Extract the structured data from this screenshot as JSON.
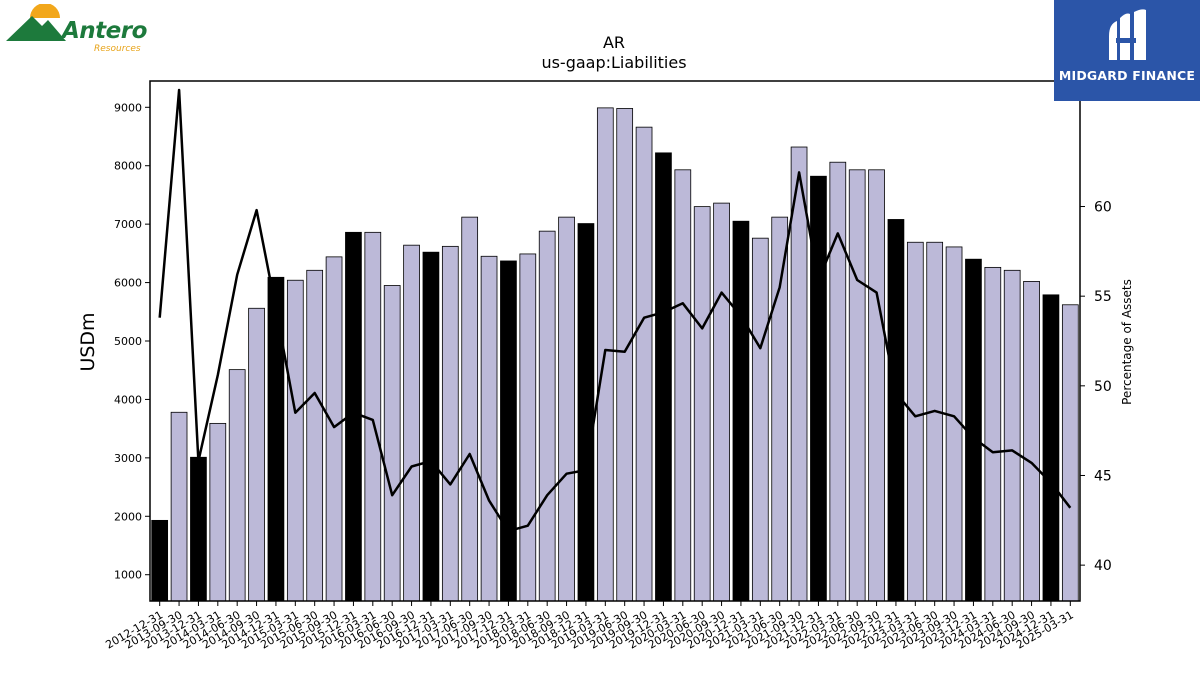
{
  "branding": {
    "left_logo_name": "Antero",
    "left_logo_sub": "Resources",
    "right_logo_name": "MIDGARD FINANCE"
  },
  "colors": {
    "bar_fill": "#bcb9d8",
    "bar_highlight": "#000000",
    "line": "#000000",
    "right_logo_bg": "#2b55a8"
  },
  "chart_data": {
    "type": "bar",
    "title": "AR",
    "subtitle": "us-gaap:Liabilities",
    "ylabel": "USDm",
    "y2label": "Percentage of Assets",
    "ylim": [
      550,
      9450
    ],
    "y2lim": [
      38,
      67
    ],
    "yticks": [
      1000,
      2000,
      3000,
      4000,
      5000,
      6000,
      7000,
      8000,
      9000
    ],
    "y2ticks": [
      40,
      45,
      50,
      55,
      60
    ],
    "grid": false,
    "categories": [
      "2012-12-31",
      "2013-09-30",
      "2013-12-31",
      "2014-03-31",
      "2014-06-30",
      "2014-09-30",
      "2014-12-31",
      "2015-03-31",
      "2015-06-30",
      "2015-09-30",
      "2015-12-31",
      "2016-03-31",
      "2016-06-30",
      "2016-09-30",
      "2016-12-31",
      "2017-03-31",
      "2017-06-30",
      "2017-09-30",
      "2017-12-31",
      "2018-03-31",
      "2018-06-30",
      "2018-09-30",
      "2018-12-31",
      "2019-03-31",
      "2019-06-30",
      "2019-09-30",
      "2019-12-31",
      "2020-03-31",
      "2020-06-30",
      "2020-09-30",
      "2020-12-31",
      "2021-03-31",
      "2021-06-30",
      "2021-09-30",
      "2021-12-31",
      "2022-03-31",
      "2022-06-30",
      "2022-09-30",
      "2022-12-31",
      "2023-03-31",
      "2023-06-30",
      "2023-09-30",
      "2023-12-31",
      "2024-03-31",
      "2024-06-30",
      "2024-09-30",
      "2024-12-31",
      "2025-03-31"
    ],
    "series": [
      {
        "kind": "bar",
        "values": [
          1930,
          3780,
          3010,
          3590,
          4510,
          5560,
          6090,
          6040,
          6210,
          6440,
          6860,
          6860,
          5950,
          6640,
          6520,
          6620,
          7120,
          6450,
          6370,
          6490,
          6880,
          7120,
          7010,
          8990,
          8980,
          8660,
          8220,
          7930,
          7300,
          7360,
          7050,
          6760,
          7120,
          8320,
          7820,
          8060,
          7930,
          7930,
          7080,
          6690,
          6690,
          6610,
          6400,
          6260,
          6210,
          6020,
          5790,
          5620
        ],
        "highlight": [
          true,
          false,
          true,
          false,
          false,
          false,
          true,
          false,
          false,
          false,
          true,
          false,
          false,
          false,
          true,
          false,
          false,
          false,
          true,
          false,
          false,
          false,
          true,
          false,
          false,
          false,
          true,
          false,
          false,
          false,
          true,
          false,
          false,
          false,
          true,
          false,
          false,
          false,
          true,
          false,
          false,
          false,
          true,
          false,
          false,
          false,
          true,
          false
        ]
      },
      {
        "kind": "line",
        "axis": "right",
        "values": [
          53.8,
          66.5,
          45.8,
          50.6,
          56.2,
          59.8,
          54.3,
          48.5,
          49.6,
          47.7,
          48.5,
          48.1,
          43.9,
          45.5,
          45.8,
          44.5,
          46.2,
          43.6,
          41.9,
          42.2,
          43.9,
          45.1,
          45.3,
          52.0,
          51.9,
          53.8,
          54.1,
          54.6,
          53.2,
          55.2,
          53.9,
          52.1,
          55.5,
          61.9,
          55.9,
          58.5,
          55.9,
          55.2,
          49.6,
          48.3,
          48.6,
          48.3,
          47.1,
          46.3,
          46.4,
          45.7,
          44.6,
          43.2
        ]
      }
    ]
  }
}
